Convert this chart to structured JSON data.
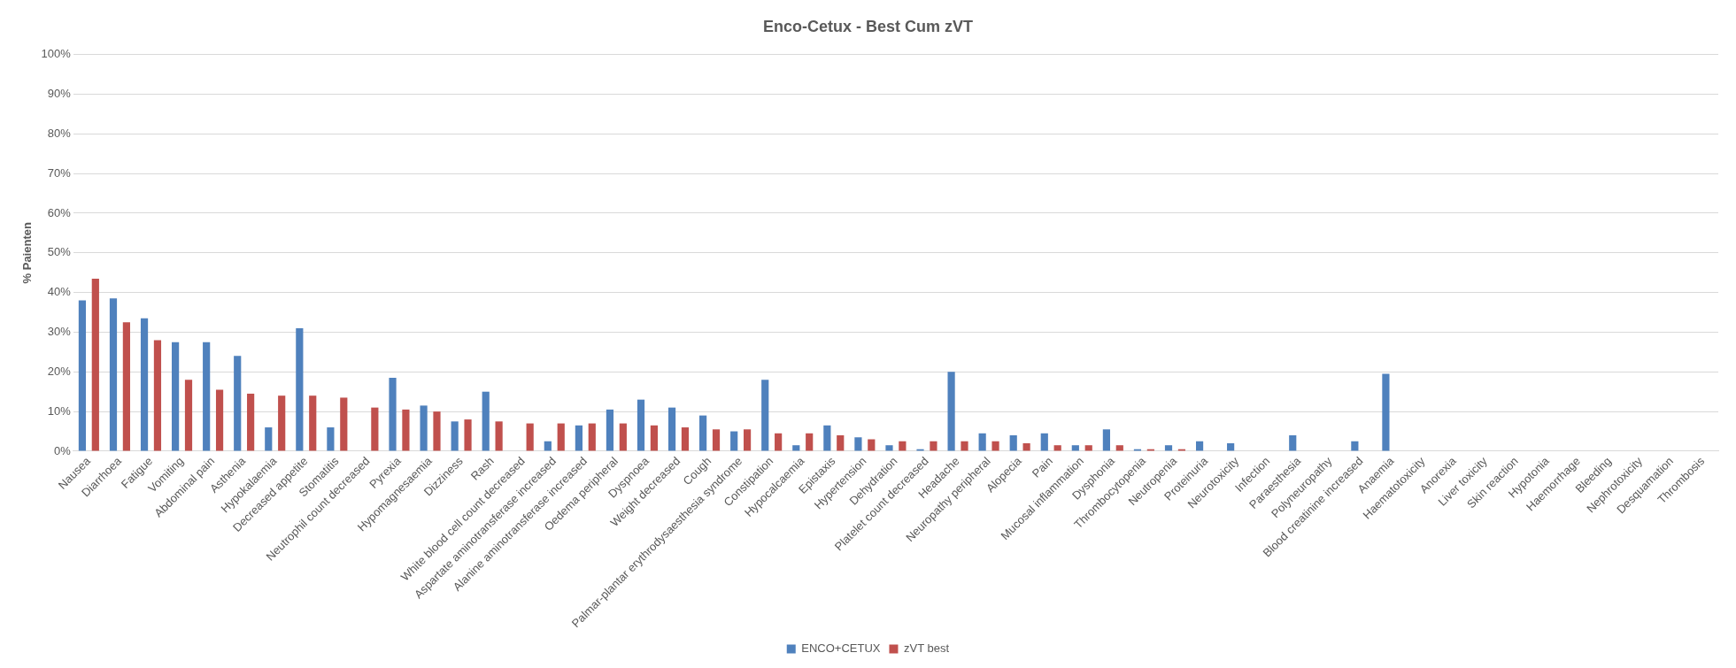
{
  "chart_data": {
    "type": "bar",
    "title": "Enco-Cetux - Best Cum zVT",
    "ylabel": "% Paienten",
    "categories": [
      "Nausea",
      "Diarrhoea",
      "Fatigue",
      "Vomiting",
      "Abdominal pain",
      "Asthenia",
      "Hypokalaemia",
      "Decreased appetite",
      "Stomatitis",
      "Neutrophil count decreased",
      "Pyrexia",
      "Hypomagnesaemia",
      "Dizziness",
      "Rash",
      "White blood cell count decreased",
      "Aspartate aminotransferase increased",
      "Alanine aminotransferase increased",
      "Oedema peripheral",
      "Dyspnoea",
      "Weight decreased",
      "Cough",
      "Palmar-plantar erythrodysaesthesia syndrome",
      "Constipation",
      "Hypocalcaemia",
      "Epistaxis",
      "Hypertension",
      "Dehydration",
      "Platelet count decreased",
      "Headache",
      "Neuropathy peripheral",
      "Alopecia",
      "Pain",
      "Mucosal inflammation",
      "Dysphonia",
      "Thrombocytopenia",
      "Neutropenia",
      "Proteinuria",
      "Neurotoxicity",
      "Infection",
      "Paraesthesia",
      "Polyneuropathy",
      "Blood creatinine increased",
      "Anaemia",
      "Haematotoxicity",
      "Anorexia",
      "Liver toxicity",
      "Skin reaction",
      "Hypotonia",
      "Haemorrhage",
      "Bleeding",
      "Nephrotoxicity",
      "Desquamation",
      "Thrombosis"
    ],
    "series": [
      {
        "name": "ENCO+CETUX",
        "color": "#4f81bd",
        "values": [
          38,
          38.5,
          33.5,
          27.5,
          27.5,
          24,
          6,
          31,
          6,
          0,
          18.5,
          11.5,
          7.5,
          15,
          0,
          2.5,
          6.5,
          10.5,
          13,
          11,
          9,
          5,
          18,
          1.5,
          6.5,
          3.5,
          1.5,
          0.5,
          20,
          4.5,
          4,
          4.5,
          1.5,
          5.5,
          0.5,
          1.5,
          2.5,
          2,
          0,
          4,
          0,
          2.5,
          19.5,
          0,
          0,
          0,
          0,
          0,
          0,
          0,
          0,
          0,
          0
        ]
      },
      {
        "name": "zVT best",
        "color": "#c0504d",
        "values": [
          43.5,
          32.5,
          28,
          18,
          15.5,
          14.5,
          14,
          14,
          13.5,
          11,
          10.5,
          10,
          8,
          7.5,
          7,
          7,
          7,
          7,
          6.5,
          6,
          5.5,
          5.5,
          4.5,
          4.5,
          4,
          3,
          2.5,
          2.5,
          2.5,
          2.5,
          2,
          1.5,
          1.5,
          1.5,
          0.5,
          0.5,
          0,
          0,
          0,
          0,
          0,
          0,
          0,
          0,
          0,
          0,
          0,
          0,
          0,
          0,
          0,
          0,
          0
        ]
      }
    ],
    "ylim": [
      0,
      100
    ],
    "yticks": [
      {
        "value": 0,
        "label": "0%"
      },
      {
        "value": 10,
        "label": "10%"
      },
      {
        "value": 20,
        "label": "20%"
      },
      {
        "value": 30,
        "label": "30%"
      },
      {
        "value": 40,
        "label": "40%"
      },
      {
        "value": 50,
        "label": "50%"
      },
      {
        "value": 60,
        "label": "60%"
      },
      {
        "value": 70,
        "label": "70%"
      },
      {
        "value": 80,
        "label": "80%"
      },
      {
        "value": 90,
        "label": "90%"
      },
      {
        "value": 100,
        "label": "100%"
      }
    ],
    "grid": "y",
    "legend": "bottom"
  }
}
